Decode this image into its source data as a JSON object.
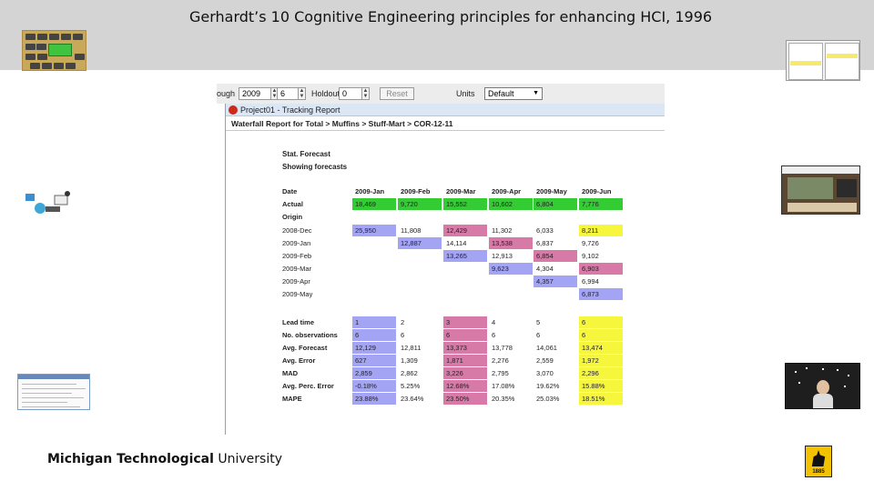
{
  "slide": {
    "title": "Gerhardt’s 10 Cognitive Engineering principles for enhancing HCI, 1996",
    "footer_logo_text_bold": "Michigan Technological",
    "footer_logo_text_regular": " University",
    "husky_year": "1885"
  },
  "controls": {
    "through_label": "ough",
    "through_year": "2009",
    "through_period": "6",
    "holdout_label": "Holdout",
    "holdout_value": "0",
    "reset_label": "Reset",
    "units_label": "Units",
    "units_value": "Default"
  },
  "window": {
    "title": "Project01 - Tracking Report",
    "breadcrumb": "Waterfall Report for Total > Muffins > Stuff-Mart > COR-12-11",
    "stat_forecast": "Stat. Forecast",
    "showing": "Showing forecasts"
  },
  "table": {
    "date_label": "Date",
    "columns": [
      "2009-Jan",
      "2009-Feb",
      "2009-Mar",
      "2009-Apr",
      "2009-May",
      "2009-Jun"
    ],
    "actual_label": "Actual",
    "actual": [
      "18,469",
      "9,720",
      "15,552",
      "10,602",
      "6,804",
      "7,776"
    ],
    "origin_label": "Origin",
    "origin_rows": [
      {
        "label": "2008-Dec",
        "values": [
          "25,950",
          "11,808",
          "12,429",
          "11,302",
          "6,033",
          "8,211"
        ]
      },
      {
        "label": "2009-Jan",
        "values": [
          "",
          "12,887",
          "14,114",
          "13,538",
          "6,837",
          "9,726"
        ]
      },
      {
        "label": "2009-Feb",
        "values": [
          "",
          "",
          "13,265",
          "12,913",
          "6,854",
          "9,102"
        ]
      },
      {
        "label": "2009-Mar",
        "values": [
          "",
          "",
          "",
          "9,623",
          "4,304",
          "6,903"
        ]
      },
      {
        "label": "2009-Apr",
        "values": [
          "",
          "",
          "",
          "",
          "4,357",
          "6,994"
        ]
      },
      {
        "label": "2009-May",
        "values": [
          "",
          "",
          "",
          "",
          "",
          "6,873"
        ]
      }
    ],
    "stats_rows": [
      {
        "label": "Lead time",
        "values": [
          "1",
          "2",
          "3",
          "4",
          "5",
          "6"
        ]
      },
      {
        "label": "No. observations",
        "values": [
          "6",
          "6",
          "6",
          "6",
          "6",
          "6"
        ]
      },
      {
        "label": "Avg. Forecast",
        "values": [
          "12,129",
          "12,811",
          "13,373",
          "13,778",
          "14,061",
          "13,474"
        ]
      },
      {
        "label": "Avg. Error",
        "values": [
          "627",
          "1,309",
          "1,871",
          "2,276",
          "2,559",
          "1,972"
        ]
      },
      {
        "label": "MAD",
        "values": [
          "2,859",
          "2,862",
          "3,226",
          "2,795",
          "3,070",
          "2,296"
        ]
      },
      {
        "label": "Avg. Perc. Error",
        "values": [
          "-0.18%",
          "5.25%",
          "12.68%",
          "17.08%",
          "19.62%",
          "15.88%"
        ]
      },
      {
        "label": "MAPE",
        "values": [
          "23.88%",
          "23.64%",
          "23.50%",
          "20.35%",
          "25.03%",
          "18.51%"
        ]
      }
    ]
  },
  "colors": {
    "actual_green": "#33cc33",
    "diag_blue": "#a4a4f4",
    "diag_pink": "#d77aa8",
    "diag_yellow": "#f6f63c"
  }
}
